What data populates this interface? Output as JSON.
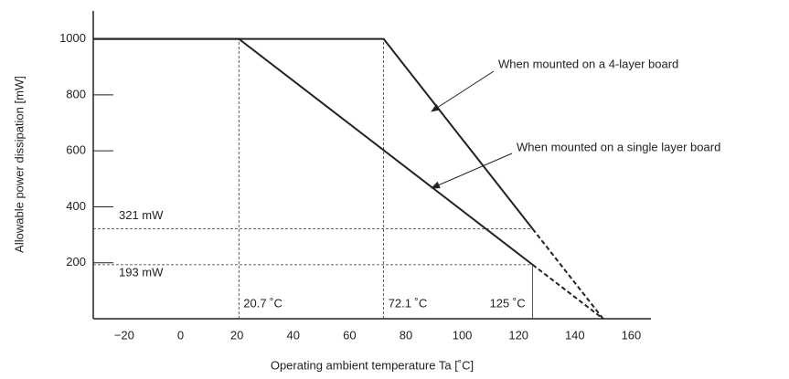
{
  "chart_data": {
    "type": "line",
    "x_label": "Operating ambient temperature Ta [˚C]",
    "y_label": "Allowable power dissipation [mW]",
    "xlim": [
      -31,
      167
    ],
    "ylim": [
      0,
      1100
    ],
    "xticks": [
      {
        "value": -20,
        "label": "−20"
      },
      0,
      20,
      40,
      60,
      80,
      100,
      120,
      140,
      160
    ],
    "yticks": [
      200,
      400,
      600,
      800,
      1000
    ],
    "series": [
      {
        "color": "#222222",
        "line_style": "solid",
        "x": [
          -31,
          72.1,
          125
        ],
        "values": [
          1000,
          1000,
          321
        ]
      },
      {
        "color": "#222222",
        "line_style": "dashed",
        "x": [
          125,
          150
        ],
        "values": [
          321,
          0
        ]
      },
      {
        "color": "#222222",
        "line_style": "solid",
        "x": [
          -31,
          20.7,
          125
        ],
        "values": [
          1000,
          1000,
          193
        ]
      },
      {
        "color": "#222222",
        "line_style": "dashed",
        "x": [
          125,
          150
        ],
        "values": [
          193,
          0
        ]
      }
    ],
    "reference_lines": [
      {
        "axis": "y",
        "value": 321,
        "label": "321 mW"
      },
      {
        "axis": "y",
        "value": 193,
        "label": "193 mW"
      },
      {
        "axis": "x",
        "value": 20.7,
        "label": "20.7 ˚C"
      },
      {
        "axis": "x",
        "value": 72.1,
        "label": "72.1 ˚C"
      },
      {
        "axis": "x",
        "value": 125,
        "label": "125 ˚C"
      }
    ],
    "annotations": [
      "When mounted on a 4-layer board",
      "When mounted on a single layer board"
    ]
  }
}
